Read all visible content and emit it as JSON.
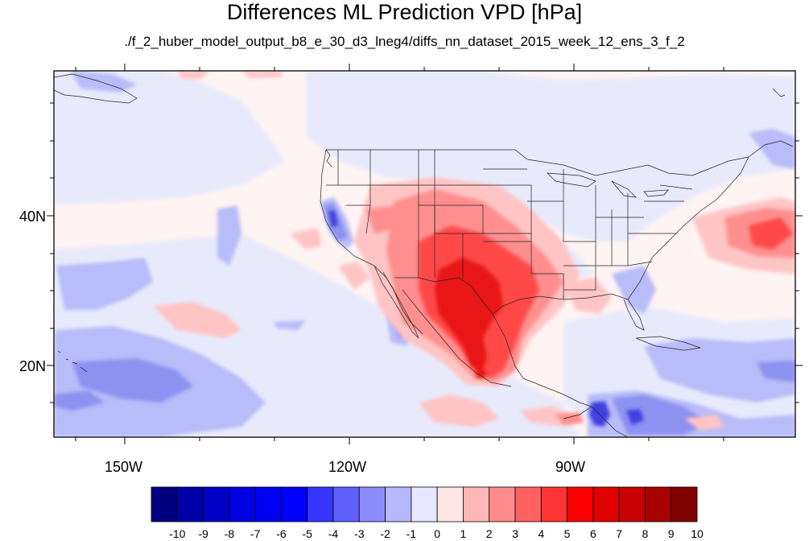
{
  "title": "Differences ML Prediction VPD [hPa]",
  "subtitle": "./f_2_huber_model_output_b8_e_30_d3_lneg4/diffs_nn_dataset_2015_week_12_ens_3_f_2",
  "axes": {
    "lat_labels": [
      "40N",
      "20N"
    ],
    "lon_labels": [
      "150W",
      "120W",
      "90W"
    ]
  },
  "colorbar": {
    "labels": [
      "-10",
      "-9",
      "-8",
      "-7",
      "-6",
      "-5",
      "-4",
      "-3",
      "-2",
      "-1",
      "0",
      "1",
      "2",
      "3",
      "4",
      "5",
      "6",
      "7",
      "8",
      "9",
      "10"
    ],
    "colors": [
      "#000080",
      "#0000a8",
      "#0000c8",
      "#0000e0",
      "#0000f5",
      "#0000ff",
      "#3535ff",
      "#6060ff",
      "#8c8cff",
      "#b8b8ff",
      "#e6e6ff",
      "#ffe6e6",
      "#ffb8b8",
      "#ff8c8c",
      "#ff6060",
      "#ff3535",
      "#ff0000",
      "#e00000",
      "#c80000",
      "#a80000",
      "#800000"
    ]
  },
  "map": {
    "background": "#fff3f3",
    "neutral_blue": "#e8eafc",
    "light_blue": "#b8bcf8",
    "mid_blue": "#8c92f0",
    "dark_blue": "#4040e0",
    "light_red": "#ffc4c4",
    "mid_red": "#ff8f8f",
    "red": "#ff4a4a",
    "deep_red": "#e81515"
  }
}
